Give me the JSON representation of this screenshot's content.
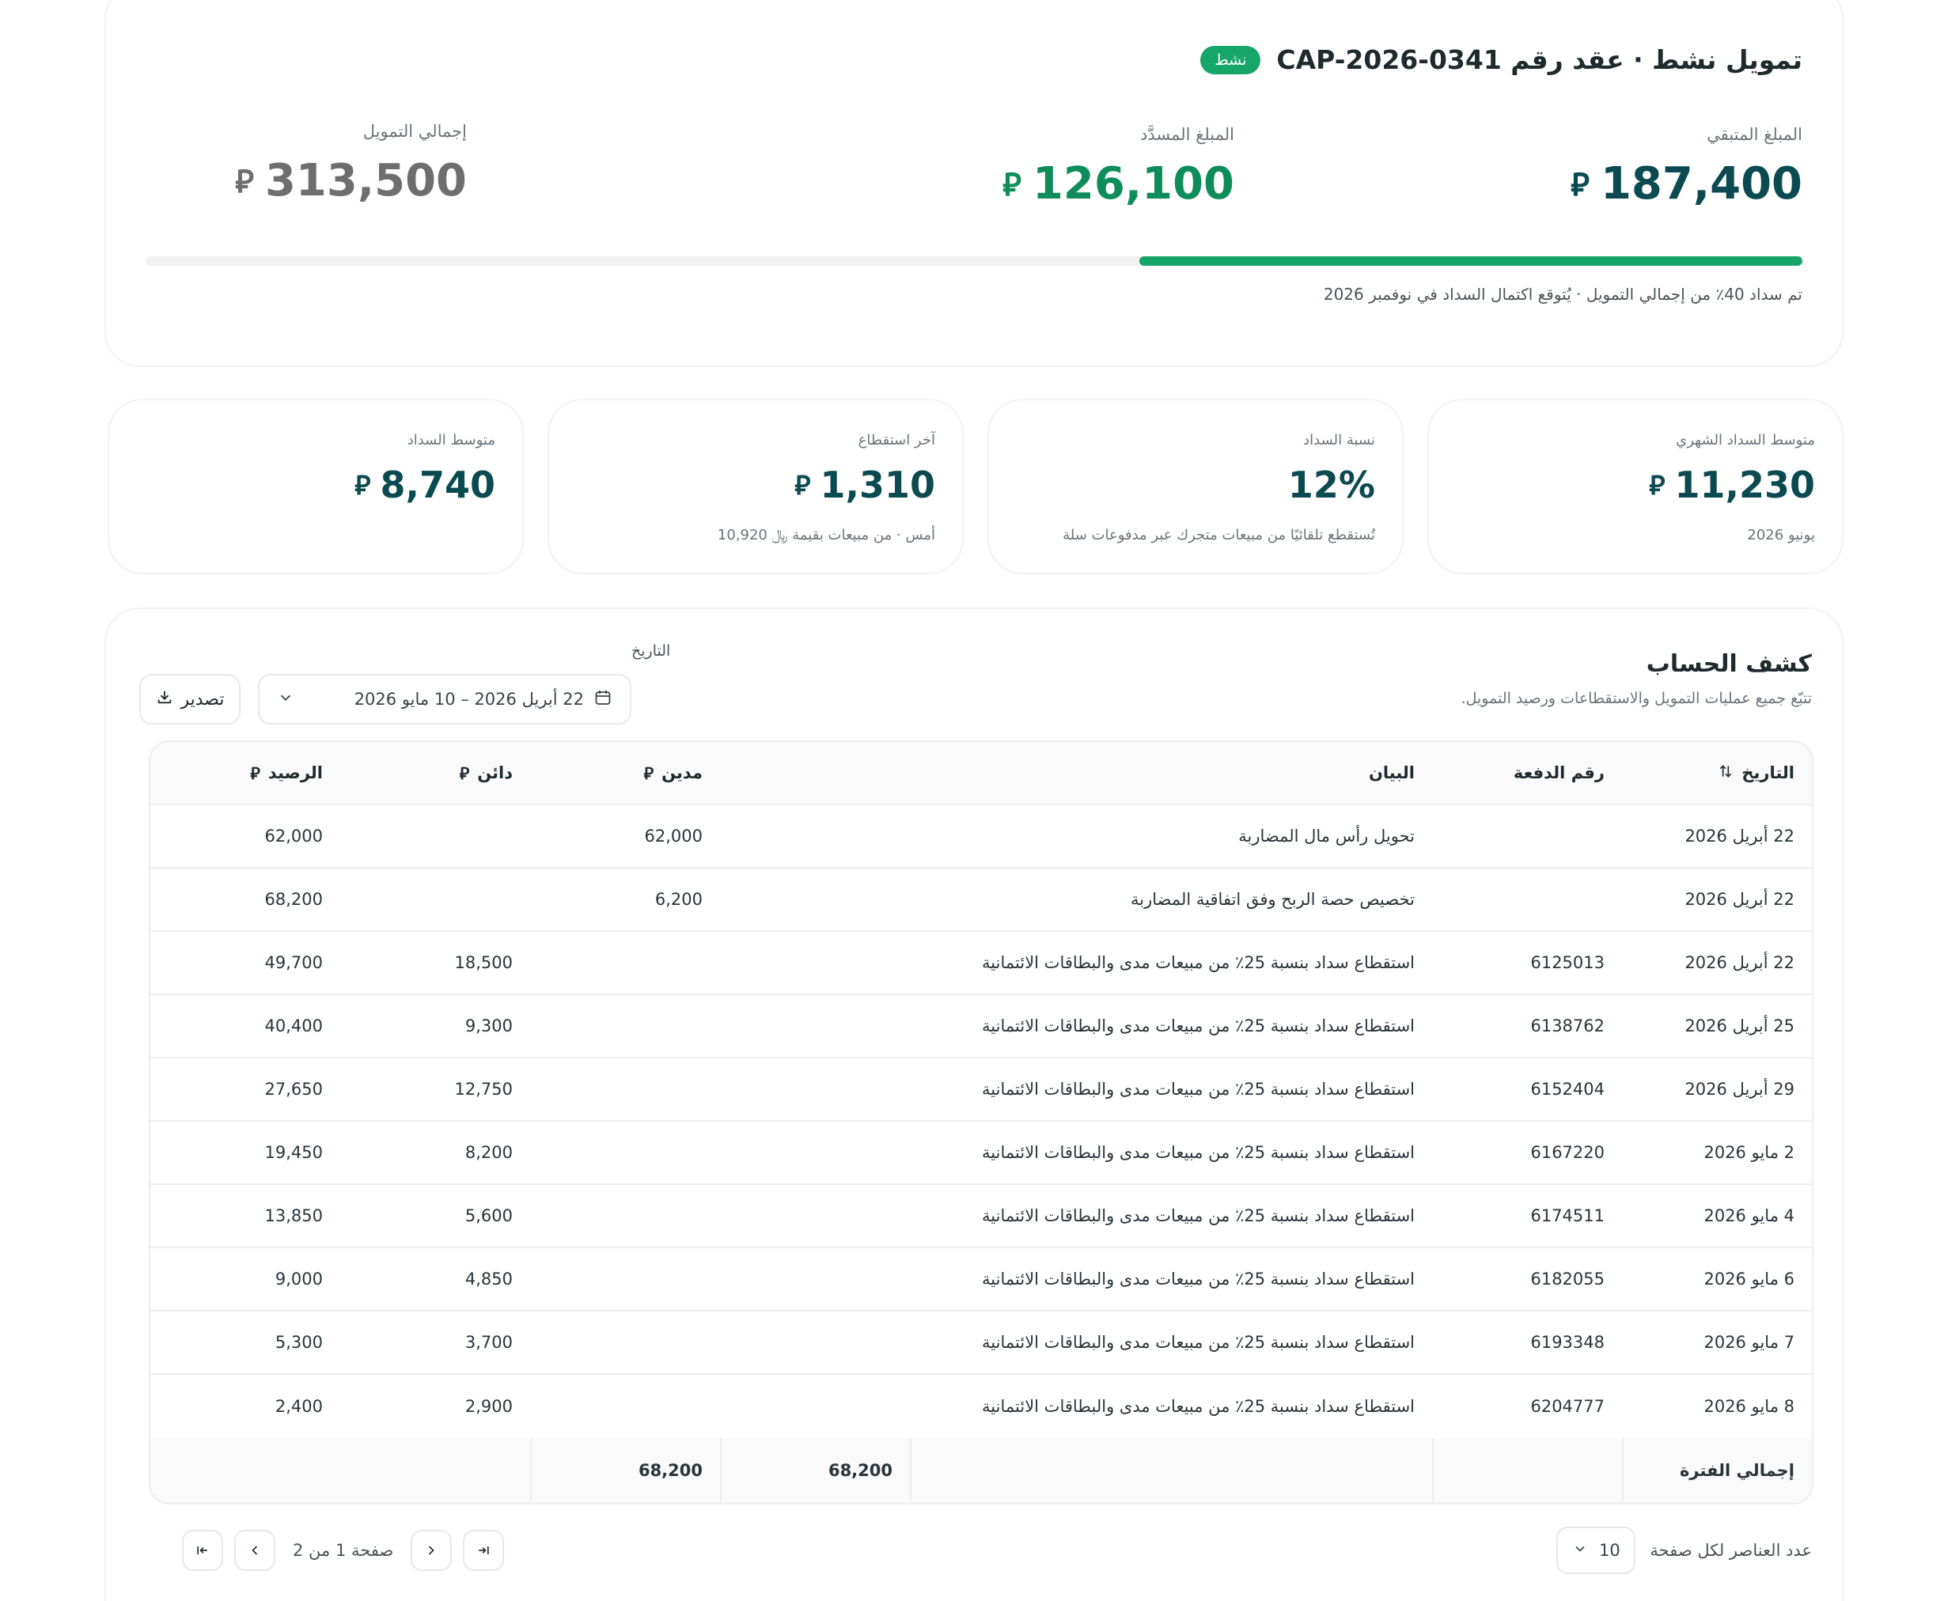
{
  "summary": {
    "title": "تمويل نشط · عقد رقم CAP-2026-0341",
    "badge": "نشط",
    "remaining_label": "المبلغ المتبقي",
    "remaining_value": "187,400",
    "paid_label": "المبلغ المسدَّد",
    "paid_value": "126,100",
    "total_label": "إجمالي التمويل",
    "total_value": "313,500",
    "currency": "﷼",
    "progress_fraction": 0.4,
    "progress_note": "تم سداد 40٪ من إجمالي التمويل · يُتوقع اكتمال السداد في نوفمبر 2026",
    "colors": {
      "accent": "#16a66a",
      "primary": "#0c4a52",
      "paid": "#0f8c5b"
    }
  },
  "kpis": [
    {
      "label": "متوسط السداد الشهري",
      "value": "11,230",
      "currency": "﷼",
      "sub": "يونيو 2026"
    },
    {
      "label": "نسبة السداد",
      "value": "12%",
      "currency": "",
      "sub": "تُستقطع تلقائيًا من مبيعات متجرك عبر مدفوعات سلة"
    },
    {
      "label": "آخر استقطاع",
      "value": "1,310",
      "currency": "﷼",
      "sub": "أمس · من مبيعات بقيمة ﷼ 10,920"
    },
    {
      "label": "متوسط السداد",
      "value": "8,740",
      "currency": "﷼",
      "sub": ""
    }
  ],
  "statement": {
    "title": "كشف الحساب",
    "subtitle": "تتبّع جميع عمليات التمويل والاستقطاعات ورصيد التمويل.",
    "date_label": "التاريخ",
    "date_range": "22 أبريل 2026 – 10 مايو 2026",
    "export_label": "تصدير",
    "columns": {
      "date": "التاريخ",
      "ref": "رقم الدفعة",
      "desc": "البيان",
      "debit": "مدين",
      "credit": "دائن",
      "balance": "الرصيد"
    },
    "rows": [
      {
        "date": "22 أبريل 2026",
        "ref": "",
        "desc": "تحويل رأس مال المضاربة",
        "debit": "62,000",
        "credit": "",
        "balance": "62,000"
      },
      {
        "date": "22 أبريل 2026",
        "ref": "",
        "desc": "تخصيص حصة الربح وفق اتفاقية المضاربة",
        "debit": "6,200",
        "credit": "",
        "balance": "68,200"
      },
      {
        "date": "22 أبريل 2026",
        "ref": "6125013",
        "desc": "استقطاع سداد بنسبة 25٪ من مبيعات مدى والبطاقات الائتمانية",
        "debit": "",
        "credit": "18,500",
        "balance": "49,700"
      },
      {
        "date": "25 أبريل 2026",
        "ref": "6138762",
        "desc": "استقطاع سداد بنسبة 25٪ من مبيعات مدى والبطاقات الائتمانية",
        "debit": "",
        "credit": "9,300",
        "balance": "40,400"
      },
      {
        "date": "29 أبريل 2026",
        "ref": "6152404",
        "desc": "استقطاع سداد بنسبة 25٪ من مبيعات مدى والبطاقات الائتمانية",
        "debit": "",
        "credit": "12,750",
        "balance": "27,650"
      },
      {
        "date": "2 مايو 2026",
        "ref": "6167220",
        "desc": "استقطاع سداد بنسبة 25٪ من مبيعات مدى والبطاقات الائتمانية",
        "debit": "",
        "credit": "8,200",
        "balance": "19,450"
      },
      {
        "date": "4 مايو 2026",
        "ref": "6174511",
        "desc": "استقطاع سداد بنسبة 25٪ من مبيعات مدى والبطاقات الائتمانية",
        "debit": "",
        "credit": "5,600",
        "balance": "13,850"
      },
      {
        "date": "6 مايو 2026",
        "ref": "6182055",
        "desc": "استقطاع سداد بنسبة 25٪ من مبيعات مدى والبطاقات الائتمانية",
        "debit": "",
        "credit": "4,850",
        "balance": "9,000"
      },
      {
        "date": "7 مايو 2026",
        "ref": "6193348",
        "desc": "استقطاع سداد بنسبة 25٪ من مبيعات مدى والبطاقات الائتمانية",
        "debit": "",
        "credit": "3,700",
        "balance": "5,300"
      },
      {
        "date": "8 مايو 2026",
        "ref": "6204777",
        "desc": "استقطاع سداد بنسبة 25٪ من مبيعات مدى والبطاقات الائتمانية",
        "debit": "",
        "credit": "2,900",
        "balance": "2,400"
      }
    ],
    "totals": {
      "label": "إجمالي الفترة",
      "debit": "68,200",
      "credit": "68,200"
    },
    "pagination": {
      "page_text": "صفحة 1 من 2",
      "per_page_label": "عدد العناصر لكل صفحة",
      "per_page_value": "10"
    }
  }
}
